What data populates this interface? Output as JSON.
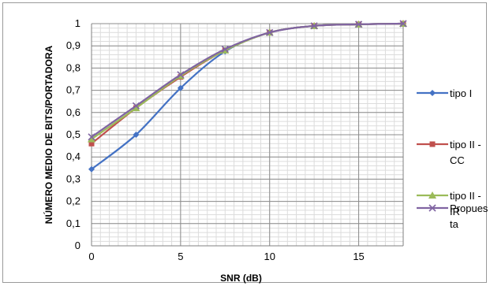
{
  "chart_data": {
    "type": "line",
    "title": "",
    "xlabel": "SNR (dB)",
    "ylabel": "NÚMERO MEDIO DE BITS/PORTADORA",
    "x": [
      0,
      2.5,
      5,
      7.5,
      10,
      12.5,
      15,
      17.5
    ],
    "xticks": [
      0,
      5,
      10,
      15
    ],
    "xlim": [
      0,
      17.5
    ],
    "yticks": [
      0,
      0.1,
      0.2,
      0.3,
      0.4,
      0.5,
      0.6,
      0.7,
      0.8,
      0.9,
      1
    ],
    "ytick_labels": [
      "0",
      "0,1",
      "0,2",
      "0,3",
      "0,4",
      "0,5",
      "0,6",
      "0,7",
      "0,8",
      "0,9",
      "1"
    ],
    "ylim": [
      0,
      1
    ],
    "grid": true,
    "legend_position": "right",
    "series": [
      {
        "name_lines": [
          "tipo I"
        ],
        "color": "#4472C4",
        "marker": "diamond",
        "values": [
          0.345,
          0.5,
          0.71,
          0.875,
          0.96,
          0.99,
          0.997,
          1.0
        ]
      },
      {
        "name_lines": [
          "tipo II -",
          "CC"
        ],
        "color": "#C0504D",
        "marker": "square",
        "values": [
          0.46,
          0.62,
          0.76,
          0.88,
          0.96,
          0.99,
          0.997,
          1.0
        ]
      },
      {
        "name_lines": [
          "tipo II -",
          "IR"
        ],
        "color": "#9BBB59",
        "marker": "triangle",
        "values": [
          0.48,
          0.62,
          0.765,
          0.88,
          0.96,
          0.99,
          0.997,
          1.0
        ]
      },
      {
        "name_lines": [
          "Propues",
          "ta"
        ],
        "color": "#8064A2",
        "marker": "x",
        "values": [
          0.49,
          0.63,
          0.77,
          0.885,
          0.96,
          0.99,
          0.997,
          1.0
        ]
      }
    ]
  }
}
